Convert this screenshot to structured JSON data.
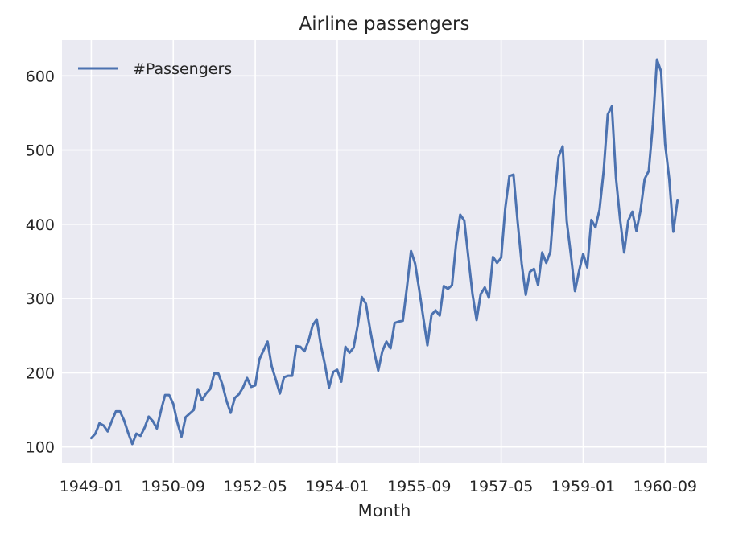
{
  "chart_data": {
    "type": "line",
    "title": "Airline passengers",
    "xlabel": "Month",
    "ylabel": "",
    "ylim": [
      78,
      648
    ],
    "yticks": [
      100,
      200,
      300,
      400,
      500,
      600
    ],
    "xticks": [
      "1949-01",
      "1950-09",
      "1952-05",
      "1954-01",
      "1955-09",
      "1957-05",
      "1959-01",
      "1960-09"
    ],
    "grid": true,
    "legend": "upper left",
    "background": "#eaeaf2",
    "line_color": "#4c72b0",
    "x_start": "1949-01",
    "x_end": "1960-12",
    "series": [
      {
        "name": "#Passengers",
        "values": [
          112,
          118,
          132,
          129,
          121,
          135,
          148,
          148,
          136,
          119,
          104,
          118,
          115,
          126,
          141,
          135,
          125,
          149,
          170,
          170,
          158,
          133,
          114,
          140,
          145,
          150,
          178,
          163,
          172,
          178,
          199,
          199,
          184,
          162,
          146,
          166,
          171,
          180,
          193,
          181,
          183,
          218,
          230,
          242,
          209,
          191,
          172,
          194,
          196,
          196,
          236,
          235,
          229,
          243,
          264,
          272,
          237,
          211,
          180,
          201,
          204,
          188,
          235,
          227,
          234,
          264,
          302,
          293,
          259,
          229,
          203,
          229,
          242,
          233,
          267,
          269,
          270,
          315,
          364,
          347,
          312,
          274,
          237,
          278,
          284,
          277,
          317,
          313,
          318,
          374,
          413,
          405,
          355,
          306,
          271,
          306,
          315,
          301,
          356,
          348,
          355,
          422,
          465,
          467,
          404,
          347,
          305,
          336,
          340,
          318,
          362,
          348,
          363,
          435,
          491,
          505,
          404,
          359,
          310,
          337,
          360,
          342,
          406,
          396,
          420,
          472,
          548,
          559,
          463,
          407,
          362,
          405,
          417,
          391,
          419,
          461,
          472,
          535,
          622,
          606,
          508,
          461,
          390,
          432
        ]
      }
    ]
  }
}
